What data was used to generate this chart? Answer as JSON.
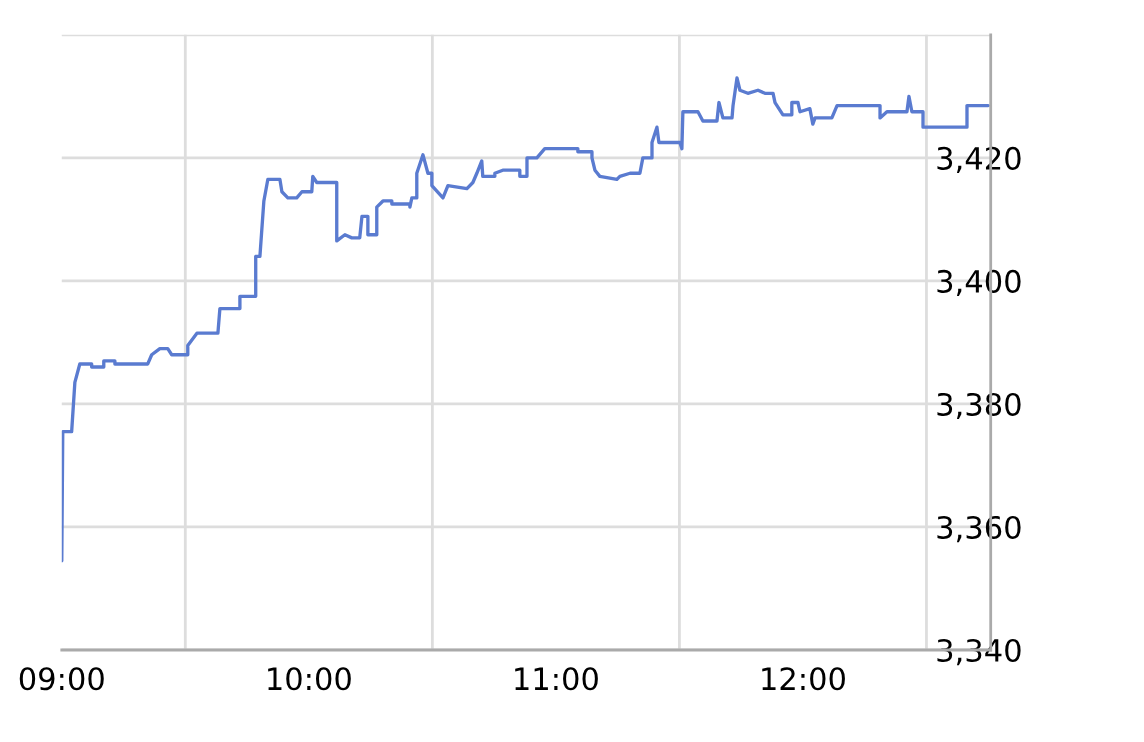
{
  "chart_data": {
    "type": "line",
    "grid": true,
    "marker": "none",
    "line_style": "solid",
    "xlim": [
      9.0,
      12.76
    ],
    "ylim": [
      3340,
      3440
    ],
    "xticks": [
      {
        "value": 9,
        "label": "09:00"
      },
      {
        "value": 9.5,
        "label": null
      },
      {
        "value": 10,
        "label": "10:00"
      },
      {
        "value": 10.5,
        "label": null
      },
      {
        "value": 11,
        "label": "11:00"
      },
      {
        "value": 11.5,
        "label": null
      },
      {
        "value": 12,
        "label": "12:00"
      },
      {
        "value": 12.5,
        "label": null
      }
    ],
    "yticks": [
      {
        "value": 3340,
        "label": "3,340"
      },
      {
        "value": 3360,
        "label": "3,360"
      },
      {
        "value": 3380,
        "label": "3,380"
      },
      {
        "value": 3400,
        "label": "3,400"
      },
      {
        "value": 3420,
        "label": "3,420"
      },
      {
        "value": 3440,
        "label": null
      }
    ],
    "series": [
      {
        "color": "#5a7bd0",
        "x": [
          9.0,
          9.004,
          9.04,
          9.053,
          9.073,
          9.121,
          9.121,
          9.17,
          9.17,
          9.215,
          9.215,
          9.348,
          9.364,
          9.397,
          9.429,
          9.445,
          9.51,
          9.51,
          9.547,
          9.632,
          9.64,
          9.721,
          9.721,
          9.785,
          9.785,
          9.802,
          9.818,
          9.834,
          9.883,
          9.891,
          9.915,
          9.951,
          9.972,
          10.012,
          10.016,
          10.032,
          10.113,
          10.113,
          10.146,
          10.174,
          10.206,
          10.215,
          10.239,
          10.239,
          10.275,
          10.275,
          10.3,
          10.336,
          10.336,
          10.409,
          10.409,
          10.417,
          10.437,
          10.437,
          10.462,
          10.482,
          10.498,
          10.498,
          10.543,
          10.563,
          10.64,
          10.664,
          10.68,
          10.7,
          10.704,
          10.753,
          10.753,
          10.785,
          10.854,
          10.854,
          10.883,
          10.883,
          10.923,
          10.955,
          11.089,
          11.089,
          11.146,
          11.146,
          11.158,
          11.178,
          11.247,
          11.259,
          11.3,
          11.34,
          11.352,
          11.389,
          11.389,
          11.409,
          11.417,
          11.502,
          11.51,
          11.514,
          11.575,
          11.595,
          11.652,
          11.66,
          11.676,
          11.713,
          11.717,
          11.733,
          11.745,
          11.777,
          11.818,
          11.846,
          11.879,
          11.887,
          11.919,
          11.955,
          11.955,
          11.98,
          11.988,
          12.028,
          12.04,
          12.049,
          12.117,
          12.138,
          12.312,
          12.312,
          12.34,
          12.421,
          12.429,
          12.441,
          12.486,
          12.486,
          12.664,
          12.664,
          12.75
        ],
        "values": [
          3354.5,
          3375.5,
          3375.5,
          3383.5,
          3386.5,
          3386.5,
          3386,
          3386,
          3387,
          3387,
          3386.5,
          3386.5,
          3388,
          3389,
          3389,
          3388,
          3388,
          3389.5,
          3391.5,
          3391.5,
          3395.5,
          3395.5,
          3397.5,
          3397.5,
          3404,
          3404,
          3413,
          3416.5,
          3416.5,
          3414.5,
          3413.5,
          3413.5,
          3414.5,
          3414.5,
          3417,
          3416,
          3416,
          3406.5,
          3407.5,
          3407,
          3407,
          3410.5,
          3410.5,
          3407.5,
          3407.5,
          3412,
          3413,
          3413,
          3412.5,
          3412.5,
          3412,
          3413.5,
          3413.5,
          3417.5,
          3420.5,
          3417.5,
          3417.5,
          3415.5,
          3413.5,
          3415.5,
          3415,
          3416,
          3417.5,
          3419.5,
          3417,
          3417,
          3417.5,
          3418,
          3418,
          3417,
          3417,
          3420,
          3420,
          3421.5,
          3421.5,
          3421,
          3421,
          3420,
          3418,
          3417,
          3416.5,
          3417,
          3417.5,
          3417.5,
          3420,
          3420,
          3422.5,
          3425,
          3422.5,
          3422.5,
          3421.5,
          3427.5,
          3427.5,
          3426,
          3426,
          3429,
          3426.5,
          3426.5,
          3428.5,
          3433,
          3431,
          3430.5,
          3431,
          3430.5,
          3430.5,
          3429,
          3427,
          3427,
          3429,
          3429,
          3427.5,
          3428,
          3425.5,
          3426.5,
          3426.5,
          3428.5,
          3428.5,
          3426.5,
          3427.5,
          3427.5,
          3430,
          3427.5,
          3427.5,
          3425,
          3425,
          3428.5,
          3428.5
        ]
      }
    ]
  }
}
